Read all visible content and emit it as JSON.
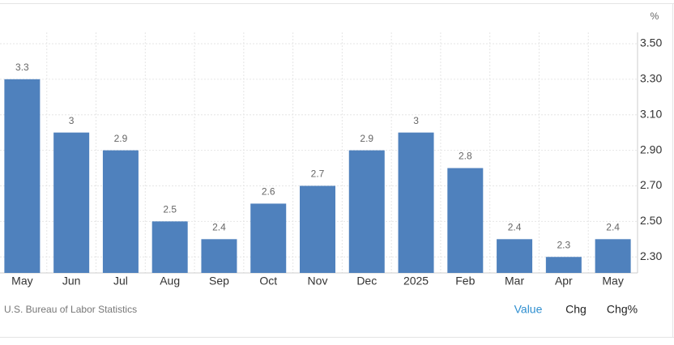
{
  "chart_data": {
    "type": "bar",
    "unit": "%",
    "categories": [
      "May",
      "Jun",
      "Jul",
      "Aug",
      "Sep",
      "Oct",
      "Nov",
      "Dec",
      "2025",
      "Feb",
      "Mar",
      "Apr",
      "May"
    ],
    "values": [
      3.3,
      3,
      2.9,
      2.5,
      2.4,
      2.6,
      2.7,
      2.9,
      3,
      2.8,
      2.4,
      2.3,
      2.4
    ],
    "color": "#4f81bd",
    "ylim": [
      2.21,
      3.6
    ],
    "yticks": [
      {
        "value": 2.3,
        "label": "2.30"
      },
      {
        "value": 2.5,
        "label": "2.50"
      },
      {
        "value": 2.7,
        "label": "2.70"
      },
      {
        "value": 2.9,
        "label": "2.90"
      },
      {
        "value": 3.1,
        "label": "3.10"
      },
      {
        "value": 3.3,
        "label": "3.30"
      },
      {
        "value": 3.5,
        "label": "3.50"
      }
    ],
    "grid": true
  },
  "footer": {
    "source": "U.S. Bureau of Labor Statistics",
    "tabs": [
      "Value",
      "Chg",
      "Chg%"
    ]
  }
}
